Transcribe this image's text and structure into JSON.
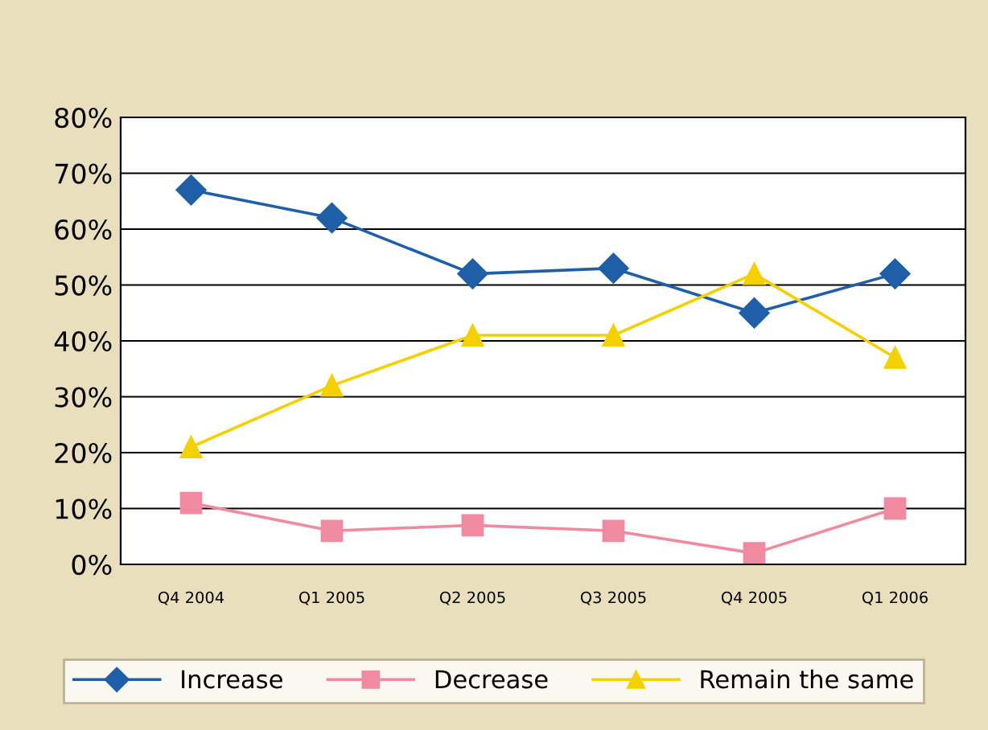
{
  "chart_data": {
    "type": "line",
    "categories": [
      "Q4 2004",
      "Q1 2005",
      "Q2 2005",
      "Q3 2005",
      "Q4 2005",
      "Q1 2006"
    ],
    "series": [
      {
        "name": "Increase",
        "color": "#1f5fa8",
        "marker": "diamond",
        "values": [
          67,
          62,
          52,
          53,
          45,
          52
        ]
      },
      {
        "name": "Decrease",
        "color": "#f08aa0",
        "marker": "square",
        "values": [
          11,
          6,
          7,
          6,
          2,
          10
        ]
      },
      {
        "name": "Remain the same",
        "color": "#f5d000",
        "marker": "triangle",
        "values": [
          21,
          32,
          41,
          41,
          52,
          37
        ]
      }
    ],
    "ylim": [
      0,
      80
    ],
    "yticks": [
      {
        "value": 0,
        "label": "0%"
      },
      {
        "value": 10,
        "label": "10%"
      },
      {
        "value": 20,
        "label": "20%"
      },
      {
        "value": 30,
        "label": "30%"
      },
      {
        "value": 40,
        "label": "40%"
      },
      {
        "value": 50,
        "label": "50%"
      },
      {
        "value": 60,
        "label": "60%"
      },
      {
        "value": 70,
        "label": "70%"
      },
      {
        "value": 80,
        "label": "80%"
      }
    ],
    "grid": "y",
    "legend": "bottom",
    "line_style": "solid"
  }
}
